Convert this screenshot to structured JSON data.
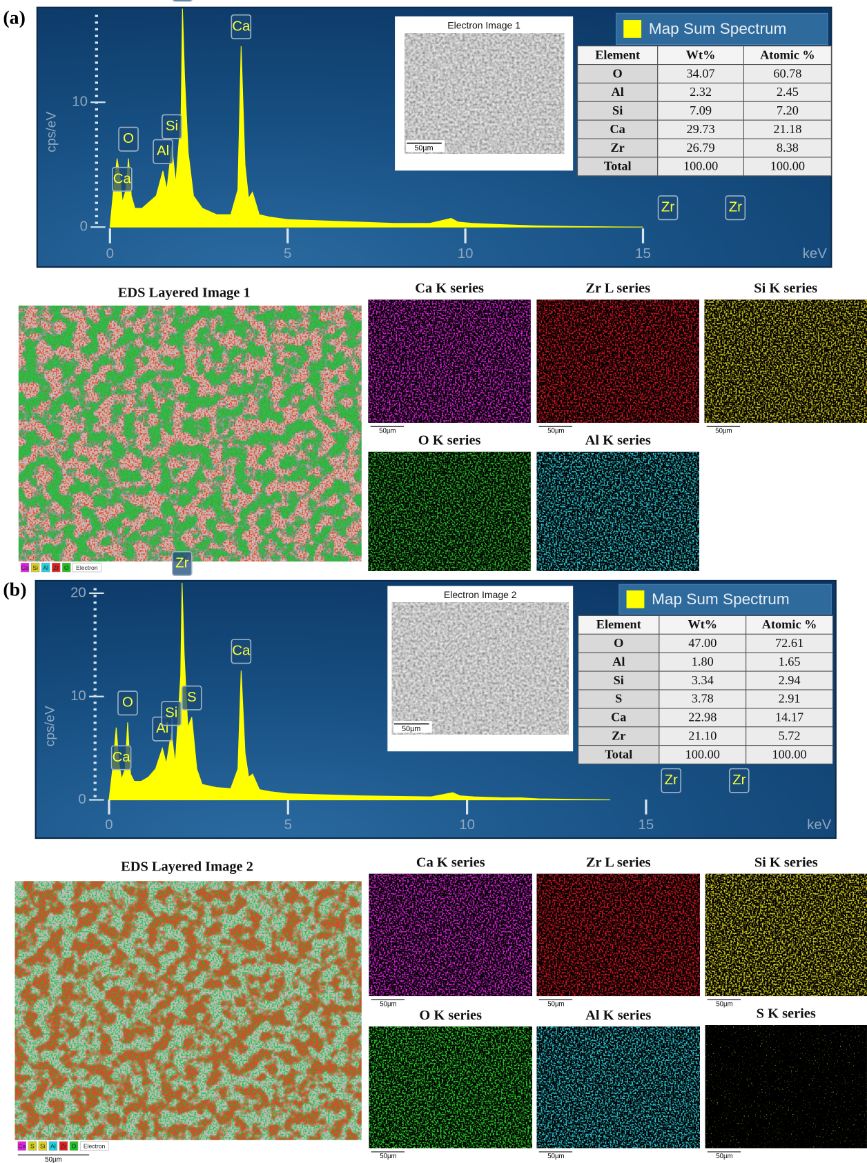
{
  "chart_data": [
    {
      "type": "area",
      "x_label": "keV",
      "y_label": "cps/eV",
      "x": [
        0,
        0.1,
        0.2,
        0.28,
        0.35,
        0.45,
        0.52,
        0.6,
        0.7,
        0.9,
        1.1,
        1.3,
        1.49,
        1.6,
        1.74,
        1.85,
        2.0,
        2.04,
        2.1,
        2.2,
        2.35,
        2.6,
        3.0,
        3.4,
        3.6,
        3.69,
        3.8,
        3.9,
        4.01,
        4.2,
        4.5,
        5,
        6,
        7,
        8,
        9,
        9.6,
        9.8,
        10.2,
        11,
        11.5,
        12,
        13,
        14,
        15
      ],
      "series": [
        {
          "name": "Map Sum Spectrum",
          "color": "#ffff00",
          "values": [
            0,
            3,
            5.5,
            4,
            2,
            3,
            5.5,
            2.5,
            1.5,
            1.5,
            2,
            2.5,
            4.5,
            3,
            6.5,
            3.5,
            9,
            17.5,
            12,
            6,
            2.5,
            1.5,
            1,
            1,
            3,
            14.5,
            5,
            2.3,
            2.8,
            1,
            0.8,
            0.6,
            0.5,
            0.4,
            0.3,
            0.3,
            0.7,
            0.4,
            0.3,
            0.2,
            0.15,
            0.1,
            0.05,
            0.02,
            0
          ]
        }
      ],
      "xlim": [
        -2.05,
        20.3
      ],
      "ylim": [
        -3.2,
        17.6
      ],
      "xticks": [
        0,
        5,
        10,
        15
      ],
      "yticks": [
        0,
        10
      ],
      "peaks": [
        {
          "label": "Ca",
          "x": 0.34
        },
        {
          "label": "O",
          "x": 0.52
        },
        {
          "label": "Al",
          "x": 1.49
        },
        {
          "label": "Si",
          "x": 1.74
        },
        {
          "label": "Zr",
          "x": 2.04
        },
        {
          "label": "Ca",
          "x": 3.69
        },
        {
          "label": "Zr",
          "x": 15.7
        },
        {
          "label": "Zr",
          "x": 17.6
        }
      ]
    },
    {
      "type": "area",
      "x_label": "keV",
      "y_label": "cps/eV",
      "x": [
        0,
        0.1,
        0.2,
        0.28,
        0.35,
        0.45,
        0.52,
        0.6,
        0.7,
        0.9,
        1.1,
        1.3,
        1.49,
        1.6,
        1.74,
        1.85,
        2.0,
        2.04,
        2.1,
        2.2,
        2.31,
        2.45,
        2.6,
        3.0,
        3.4,
        3.6,
        3.69,
        3.8,
        3.9,
        4.01,
        4.2,
        4.5,
        5,
        6,
        7,
        8,
        9,
        9.6,
        9.8,
        10.2,
        11,
        11.5,
        12,
        13,
        14
      ],
      "series": [
        {
          "name": "Map Sum Spectrum",
          "color": "#ffff00",
          "values": [
            0,
            3,
            7,
            3.5,
            2,
            3,
            7.5,
            2.5,
            1.8,
            1.8,
            2.2,
            3,
            5,
            3.5,
            6.5,
            3.5,
            12,
            21,
            14,
            7,
            8,
            3,
            1.5,
            1.2,
            1.1,
            3,
            12.5,
            4.5,
            2.2,
            2.5,
            1,
            0.8,
            0.6,
            0.5,
            0.4,
            0.35,
            0.3,
            0.7,
            0.4,
            0.3,
            0.2,
            0.2,
            0.1,
            0.05,
            0
          ]
        }
      ],
      "xlim": [
        -2.05,
        20.3
      ],
      "ylim": [
        -3.7,
        21.2
      ],
      "xticks": [
        0,
        5,
        10,
        15
      ],
      "yticks": [
        0,
        10,
        20
      ],
      "peaks": [
        {
          "label": "Ca",
          "x": 0.34
        },
        {
          "label": "O",
          "x": 0.52
        },
        {
          "label": "Al",
          "x": 1.49
        },
        {
          "label": "Si",
          "x": 1.74
        },
        {
          "label": "Zr",
          "x": 2.04
        },
        {
          "label": "S",
          "x": 2.31
        },
        {
          "label": "Ca",
          "x": 3.69
        },
        {
          "label": "Zr",
          "x": 15.7
        },
        {
          "label": "Zr",
          "x": 17.6
        }
      ]
    }
  ],
  "panels": [
    {
      "label": "(a)",
      "electron_image": {
        "title": "Electron Image 1",
        "scale": "50µm"
      },
      "table": {
        "header": [
          "Element",
          "Wt%",
          "Atomic %"
        ],
        "rows": [
          [
            "O",
            "34.07",
            "60.78"
          ],
          [
            "Al",
            "2.32",
            "2.45"
          ],
          [
            "Si",
            "7.09",
            "7.20"
          ],
          [
            "Ca",
            "29.73",
            "21.18"
          ],
          [
            "Zr",
            "26.79",
            "8.38"
          ],
          [
            "Total",
            "100.00",
            "100.00"
          ]
        ]
      },
      "layered_image": {
        "title": "EDS Layered Image 1",
        "legend": [
          {
            "label": "Ca",
            "color": "#e020e0"
          },
          {
            "label": "Si",
            "color": "#e0d020"
          },
          {
            "label": "Al",
            "color": "#20d0e0"
          },
          {
            "label": "Zr",
            "color": "#e02020"
          },
          {
            "label": "O",
            "color": "#20c020"
          },
          {
            "label": "Electron",
            "color": "#ffffff"
          }
        ]
      },
      "maps": [
        {
          "title": "Ca K series",
          "scale": "50µm",
          "color": "#d020d0"
        },
        {
          "title": "Zr L series",
          "scale": "50µm",
          "color": "#c81420"
        },
        {
          "title": "Si K series",
          "scale": "50µm",
          "color": "#c8bc1e"
        },
        {
          "title": "O K series",
          "scale": "",
          "color": "#28b428"
        },
        {
          "title": "Al K series",
          "scale": "",
          "color": "#28c0d0"
        }
      ]
    },
    {
      "label": "(b)",
      "electron_image": {
        "title": "Electron Image 2",
        "scale": "50µm"
      },
      "table": {
        "header": [
          "Element",
          "Wt%",
          "Atomic %"
        ],
        "rows": [
          [
            "O",
            "47.00",
            "72.61"
          ],
          [
            "Al",
            "1.80",
            "1.65"
          ],
          [
            "Si",
            "3.34",
            "2.94"
          ],
          [
            "S",
            "3.78",
            "2.91"
          ],
          [
            "Ca",
            "22.98",
            "14.17"
          ],
          [
            "Zr",
            "21.10",
            "5.72"
          ],
          [
            "Total",
            "100.00",
            "100.00"
          ]
        ]
      },
      "layered_image": {
        "title": "EDS Layered Image 2",
        "scale": "50µm",
        "legend": [
          {
            "label": "Ca",
            "color": "#e020e0"
          },
          {
            "label": "S",
            "color": "#d0d020"
          },
          {
            "label": "Si",
            "color": "#e0d020"
          },
          {
            "label": "Al",
            "color": "#20d0e0"
          },
          {
            "label": "Zr",
            "color": "#e02020"
          },
          {
            "label": "O",
            "color": "#20c020"
          },
          {
            "label": "Electron",
            "color": "#ffffff"
          }
        ]
      },
      "maps": [
        {
          "title": "Ca K series",
          "scale": "50µm",
          "color": "#d020d0"
        },
        {
          "title": "Zr L series",
          "scale": "50µm",
          "color": "#c81420"
        },
        {
          "title": "Si K series",
          "scale": "50µm",
          "color": "#d2c81e"
        },
        {
          "title": "O K series",
          "scale": "50µm",
          "color": "#28c828"
        },
        {
          "title": "Al K series",
          "scale": "50µm",
          "color": "#28c0d0"
        },
        {
          "title": "S K series",
          "scale": "50µm",
          "color": "#8c8c1e"
        }
      ]
    }
  ]
}
